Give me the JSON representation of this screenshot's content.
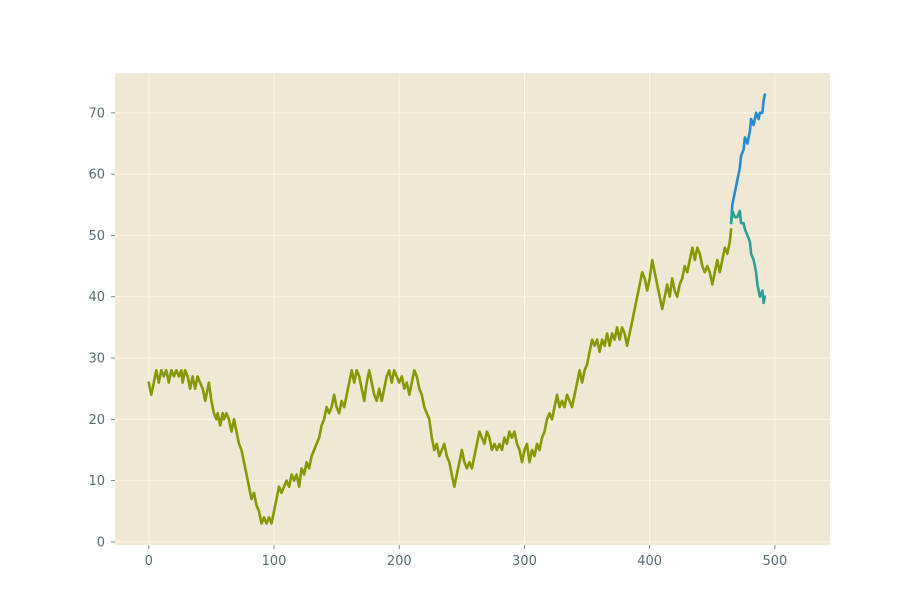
{
  "chart_data": {
    "type": "line",
    "title": "",
    "xlabel": "",
    "ylabel": "",
    "xlim": [
      -27,
      544
    ],
    "ylim": [
      -0.5,
      76.5
    ],
    "xticks": [
      0,
      100,
      200,
      300,
      400,
      500
    ],
    "yticks": [
      0,
      10,
      20,
      30,
      40,
      50,
      60,
      70
    ],
    "grid": true,
    "legend": "none",
    "colors": {
      "plot_background": "#eee8d5",
      "grid": "#fdf6e3",
      "tick_label": "#586e75",
      "history": "#859900",
      "upper": "#268bd2",
      "lower": "#2aa198"
    },
    "series": [
      {
        "color": "#859900",
        "points": [
          [
            0,
            26
          ],
          [
            2,
            24
          ],
          [
            4,
            26
          ],
          [
            6,
            28
          ],
          [
            8,
            26
          ],
          [
            10,
            28
          ],
          [
            12,
            27
          ],
          [
            14,
            28
          ],
          [
            16,
            26
          ],
          [
            18,
            28
          ],
          [
            20,
            27
          ],
          [
            22,
            28
          ],
          [
            24,
            27
          ],
          [
            26,
            28
          ],
          [
            27,
            26
          ],
          [
            29,
            28
          ],
          [
            31,
            27
          ],
          [
            33,
            25
          ],
          [
            35,
            27
          ],
          [
            37,
            25
          ],
          [
            39,
            27
          ],
          [
            41,
            26
          ],
          [
            43,
            25
          ],
          [
            45,
            23
          ],
          [
            48,
            26
          ],
          [
            50,
            23
          ],
          [
            52,
            21
          ],
          [
            54,
            20
          ],
          [
            55,
            21
          ],
          [
            57,
            19
          ],
          [
            59,
            21
          ],
          [
            60,
            20
          ],
          [
            62,
            21
          ],
          [
            64,
            20
          ],
          [
            66,
            18
          ],
          [
            68,
            20
          ],
          [
            70,
            18
          ],
          [
            72,
            16
          ],
          [
            74,
            15
          ],
          [
            76,
            13
          ],
          [
            78,
            11
          ],
          [
            80,
            9
          ],
          [
            82,
            7
          ],
          [
            84,
            8
          ],
          [
            86,
            6
          ],
          [
            88,
            5
          ],
          [
            90,
            3
          ],
          [
            92,
            4
          ],
          [
            94,
            3
          ],
          [
            96,
            4
          ],
          [
            98,
            3
          ],
          [
            100,
            5
          ],
          [
            102,
            7
          ],
          [
            104,
            9
          ],
          [
            106,
            8
          ],
          [
            108,
            9
          ],
          [
            110,
            10
          ],
          [
            112,
            9
          ],
          [
            114,
            11
          ],
          [
            116,
            10
          ],
          [
            118,
            11
          ],
          [
            120,
            9
          ],
          [
            122,
            12
          ],
          [
            124,
            11
          ],
          [
            126,
            13
          ],
          [
            128,
            12
          ],
          [
            130,
            14
          ],
          [
            132,
            15
          ],
          [
            134,
            16
          ],
          [
            136,
            17
          ],
          [
            138,
            19
          ],
          [
            140,
            20
          ],
          [
            142,
            22
          ],
          [
            144,
            21
          ],
          [
            146,
            22
          ],
          [
            148,
            24
          ],
          [
            150,
            22
          ],
          [
            152,
            21
          ],
          [
            154,
            23
          ],
          [
            156,
            22
          ],
          [
            158,
            24
          ],
          [
            160,
            26
          ],
          [
            162,
            28
          ],
          [
            164,
            26
          ],
          [
            166,
            28
          ],
          [
            168,
            27
          ],
          [
            170,
            25
          ],
          [
            172,
            23
          ],
          [
            174,
            26
          ],
          [
            176,
            28
          ],
          [
            178,
            26
          ],
          [
            180,
            24
          ],
          [
            182,
            23
          ],
          [
            184,
            25
          ],
          [
            186,
            23
          ],
          [
            188,
            25
          ],
          [
            190,
            27
          ],
          [
            192,
            28
          ],
          [
            194,
            26
          ],
          [
            196,
            28
          ],
          [
            198,
            27
          ],
          [
            200,
            26
          ],
          [
            202,
            27
          ],
          [
            204,
            25
          ],
          [
            206,
            26
          ],
          [
            208,
            24
          ],
          [
            210,
            26
          ],
          [
            212,
            28
          ],
          [
            214,
            27
          ],
          [
            216,
            25
          ],
          [
            218,
            24
          ],
          [
            220,
            22
          ],
          [
            222,
            21
          ],
          [
            224,
            20
          ],
          [
            226,
            17
          ],
          [
            228,
            15
          ],
          [
            230,
            16
          ],
          [
            232,
            14
          ],
          [
            234,
            15
          ],
          [
            236,
            16
          ],
          [
            238,
            14
          ],
          [
            240,
            13
          ],
          [
            242,
            11
          ],
          [
            244,
            9
          ],
          [
            246,
            11
          ],
          [
            248,
            13
          ],
          [
            250,
            15
          ],
          [
            252,
            13
          ],
          [
            254,
            12
          ],
          [
            256,
            13
          ],
          [
            258,
            12
          ],
          [
            260,
            14
          ],
          [
            262,
            16
          ],
          [
            264,
            18
          ],
          [
            266,
            17
          ],
          [
            268,
            16
          ],
          [
            270,
            18
          ],
          [
            272,
            17
          ],
          [
            274,
            15
          ],
          [
            276,
            16
          ],
          [
            278,
            15
          ],
          [
            280,
            16
          ],
          [
            282,
            15
          ],
          [
            284,
            17
          ],
          [
            286,
            16
          ],
          [
            288,
            18
          ],
          [
            290,
            17
          ],
          [
            292,
            18
          ],
          [
            294,
            16
          ],
          [
            296,
            15
          ],
          [
            298,
            13
          ],
          [
            300,
            15
          ],
          [
            302,
            16
          ],
          [
            304,
            13
          ],
          [
            306,
            15
          ],
          [
            308,
            14
          ],
          [
            310,
            16
          ],
          [
            312,
            15
          ],
          [
            314,
            17
          ],
          [
            316,
            18
          ],
          [
            318,
            20
          ],
          [
            320,
            21
          ],
          [
            322,
            20
          ],
          [
            324,
            22
          ],
          [
            326,
            24
          ],
          [
            328,
            22
          ],
          [
            330,
            23
          ],
          [
            332,
            22
          ],
          [
            334,
            24
          ],
          [
            336,
            23
          ],
          [
            338,
            22
          ],
          [
            340,
            24
          ],
          [
            342,
            26
          ],
          [
            344,
            28
          ],
          [
            346,
            26
          ],
          [
            348,
            28
          ],
          [
            350,
            29
          ],
          [
            352,
            31
          ],
          [
            354,
            33
          ],
          [
            356,
            32
          ],
          [
            358,
            33
          ],
          [
            360,
            31
          ],
          [
            362,
            33
          ],
          [
            364,
            32
          ],
          [
            366,
            34
          ],
          [
            368,
            32
          ],
          [
            370,
            34
          ],
          [
            372,
            33
          ],
          [
            374,
            35
          ],
          [
            376,
            33
          ],
          [
            378,
            35
          ],
          [
            380,
            34
          ],
          [
            382,
            32
          ],
          [
            384,
            34
          ],
          [
            386,
            36
          ],
          [
            388,
            38
          ],
          [
            390,
            40
          ],
          [
            392,
            42
          ],
          [
            394,
            44
          ],
          [
            396,
            43
          ],
          [
            398,
            41
          ],
          [
            400,
            43
          ],
          [
            402,
            46
          ],
          [
            404,
            44
          ],
          [
            406,
            42
          ],
          [
            408,
            40
          ],
          [
            410,
            38
          ],
          [
            412,
            40
          ],
          [
            414,
            42
          ],
          [
            416,
            40
          ],
          [
            418,
            43
          ],
          [
            420,
            41
          ],
          [
            422,
            40
          ],
          [
            424,
            42
          ],
          [
            426,
            43
          ],
          [
            428,
            45
          ],
          [
            430,
            44
          ],
          [
            432,
            46
          ],
          [
            434,
            48
          ],
          [
            436,
            46
          ],
          [
            438,
            48
          ],
          [
            440,
            47
          ],
          [
            442,
            45
          ],
          [
            444,
            44
          ],
          [
            446,
            45
          ],
          [
            448,
            44
          ],
          [
            450,
            42
          ],
          [
            452,
            44
          ],
          [
            454,
            46
          ],
          [
            456,
            44
          ],
          [
            458,
            46
          ],
          [
            460,
            48
          ],
          [
            462,
            47
          ],
          [
            464,
            49
          ],
          [
            465,
            51
          ]
        ]
      },
      {
        "color": "#268bd2",
        "points": [
          [
            465,
            52
          ],
          [
            466,
            55
          ],
          [
            468,
            57
          ],
          [
            470,
            59
          ],
          [
            472,
            61
          ],
          [
            473,
            63
          ],
          [
            475,
            64
          ],
          [
            476,
            66
          ],
          [
            478,
            65
          ],
          [
            480,
            67
          ],
          [
            481,
            69
          ],
          [
            483,
            68
          ],
          [
            485,
            70
          ],
          [
            487,
            69
          ],
          [
            488,
            70
          ],
          [
            490,
            70
          ],
          [
            491,
            72
          ],
          [
            492,
            73
          ]
        ]
      },
      {
        "color": "#2aa198",
        "points": [
          [
            465,
            52
          ],
          [
            466,
            54
          ],
          [
            468,
            53
          ],
          [
            470,
            53
          ],
          [
            472,
            54
          ],
          [
            473,
            52
          ],
          [
            475,
            52
          ],
          [
            476,
            51
          ],
          [
            478,
            50
          ],
          [
            480,
            49
          ],
          [
            481,
            47
          ],
          [
            483,
            46
          ],
          [
            485,
            44
          ],
          [
            486,
            42
          ],
          [
            488,
            40
          ],
          [
            490,
            41
          ],
          [
            491,
            39
          ],
          [
            492,
            40
          ]
        ]
      }
    ]
  }
}
